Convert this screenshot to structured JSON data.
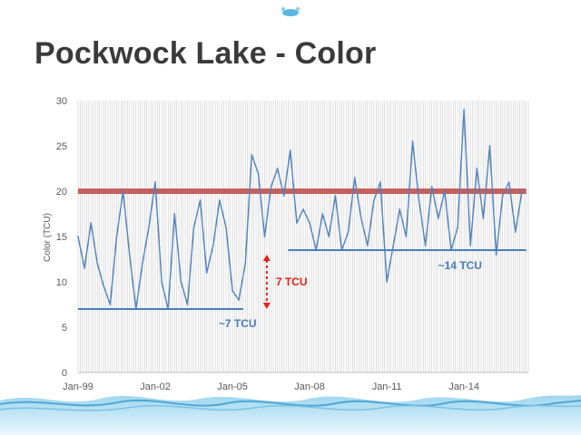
{
  "slide": {
    "title": "Pockwock Lake - Color"
  },
  "colors": {
    "series": "#4f81bd",
    "guideline": "#c0504d",
    "baseline": "#4a7ebb",
    "gap_arrow": "#e0201b",
    "axis_text": "#595959",
    "gridlines": "#c8c8c8",
    "wave": "#6fb7dc"
  },
  "chart_data": {
    "type": "line",
    "xlabel": "",
    "ylabel": "Color (TCU)",
    "ylim": [
      0,
      30
    ],
    "y_ticks": [
      0,
      5,
      10,
      15,
      20,
      25,
      30
    ],
    "x_ticks": [
      "Jan-99",
      "Jan-02",
      "Jan-05",
      "Jan-08",
      "Jan-11",
      "Jan-14"
    ],
    "grid": "vertical lines at each monthly sample",
    "series": [
      {
        "values": [
          {
            "x": "1999-01",
            "y": 15.0
          },
          {
            "x": "1999-04",
            "y": 11.5
          },
          {
            "x": "1999-07",
            "y": 16.5
          },
          {
            "x": "1999-10",
            "y": 12.0
          },
          {
            "x": "2000-01",
            "y": 9.5
          },
          {
            "x": "2000-04",
            "y": 7.5
          },
          {
            "x": "2000-07",
            "y": 15.0
          },
          {
            "x": "2000-10",
            "y": 20.0
          },
          {
            "x": "2001-01",
            "y": 13.0
          },
          {
            "x": "2001-04",
            "y": 7.0
          },
          {
            "x": "2001-07",
            "y": 12.0
          },
          {
            "x": "2001-10",
            "y": 16.0
          },
          {
            "x": "2002-01",
            "y": 21.0
          },
          {
            "x": "2002-04",
            "y": 10.0
          },
          {
            "x": "2002-07",
            "y": 7.0
          },
          {
            "x": "2002-10",
            "y": 17.5
          },
          {
            "x": "2003-01",
            "y": 10.0
          },
          {
            "x": "2003-04",
            "y": 7.5
          },
          {
            "x": "2003-07",
            "y": 16.0
          },
          {
            "x": "2003-10",
            "y": 19.0
          },
          {
            "x": "2004-01",
            "y": 11.0
          },
          {
            "x": "2004-04",
            "y": 14.0
          },
          {
            "x": "2004-07",
            "y": 19.0
          },
          {
            "x": "2004-10",
            "y": 16.0
          },
          {
            "x": "2005-01",
            "y": 9.0
          },
          {
            "x": "2005-04",
            "y": 8.0
          },
          {
            "x": "2005-07",
            "y": 12.0
          },
          {
            "x": "2005-10",
            "y": 24.0
          },
          {
            "x": "2006-01",
            "y": 22.0
          },
          {
            "x": "2006-04",
            "y": 15.0
          },
          {
            "x": "2006-07",
            "y": 20.5
          },
          {
            "x": "2006-10",
            "y": 22.5
          },
          {
            "x": "2007-01",
            "y": 19.5
          },
          {
            "x": "2007-04",
            "y": 24.5
          },
          {
            "x": "2007-07",
            "y": 16.5
          },
          {
            "x": "2007-10",
            "y": 18.0
          },
          {
            "x": "2008-01",
            "y": 16.5
          },
          {
            "x": "2008-04",
            "y": 13.5
          },
          {
            "x": "2008-07",
            "y": 17.5
          },
          {
            "x": "2008-10",
            "y": 15.0
          },
          {
            "x": "2009-01",
            "y": 19.5
          },
          {
            "x": "2009-04",
            "y": 13.5
          },
          {
            "x": "2009-07",
            "y": 15.5
          },
          {
            "x": "2009-10",
            "y": 21.5
          },
          {
            "x": "2010-01",
            "y": 17.0
          },
          {
            "x": "2010-04",
            "y": 14.0
          },
          {
            "x": "2010-07",
            "y": 19.0
          },
          {
            "x": "2010-10",
            "y": 21.0
          },
          {
            "x": "2011-01",
            "y": 10.0
          },
          {
            "x": "2011-04",
            "y": 14.0
          },
          {
            "x": "2011-07",
            "y": 18.0
          },
          {
            "x": "2011-10",
            "y": 15.0
          },
          {
            "x": "2012-01",
            "y": 25.5
          },
          {
            "x": "2012-04",
            "y": 19.0
          },
          {
            "x": "2012-07",
            "y": 14.0
          },
          {
            "x": "2012-10",
            "y": 20.5
          },
          {
            "x": "2013-01",
            "y": 17.0
          },
          {
            "x": "2013-04",
            "y": 20.0
          },
          {
            "x": "2013-07",
            "y": 13.5
          },
          {
            "x": "2013-10",
            "y": 16.0
          },
          {
            "x": "2014-01",
            "y": 29.0
          },
          {
            "x": "2014-04",
            "y": 14.0
          },
          {
            "x": "2014-07",
            "y": 22.5
          },
          {
            "x": "2014-10",
            "y": 17.0
          },
          {
            "x": "2015-01",
            "y": 25.0
          },
          {
            "x": "2015-04",
            "y": 13.0
          },
          {
            "x": "2015-07",
            "y": 19.5
          },
          {
            "x": "2015-10",
            "y": 21.0
          },
          {
            "x": "2016-01",
            "y": 15.5
          },
          {
            "x": "2016-04",
            "y": 20.0
          }
        ]
      }
    ],
    "reference_lines": [
      {
        "kind": "horizontal",
        "y": 20,
        "from": "1999-01",
        "to": "2016-06",
        "color_role": "guideline"
      },
      {
        "kind": "horizontal",
        "y": 7,
        "from": "1999-01",
        "to": "2005-06",
        "label": "~7 TCU",
        "color_role": "baseline"
      },
      {
        "kind": "horizontal",
        "y": 13.5,
        "from": "2007-03",
        "to": "2016-06",
        "label": "~14 TCU",
        "color_role": "baseline"
      }
    ],
    "annotations": [
      {
        "kind": "double-arrow",
        "x": "2006-05",
        "from": 7,
        "to": 13,
        "label": "7 TCU",
        "color_role": "gap_arrow"
      }
    ]
  }
}
